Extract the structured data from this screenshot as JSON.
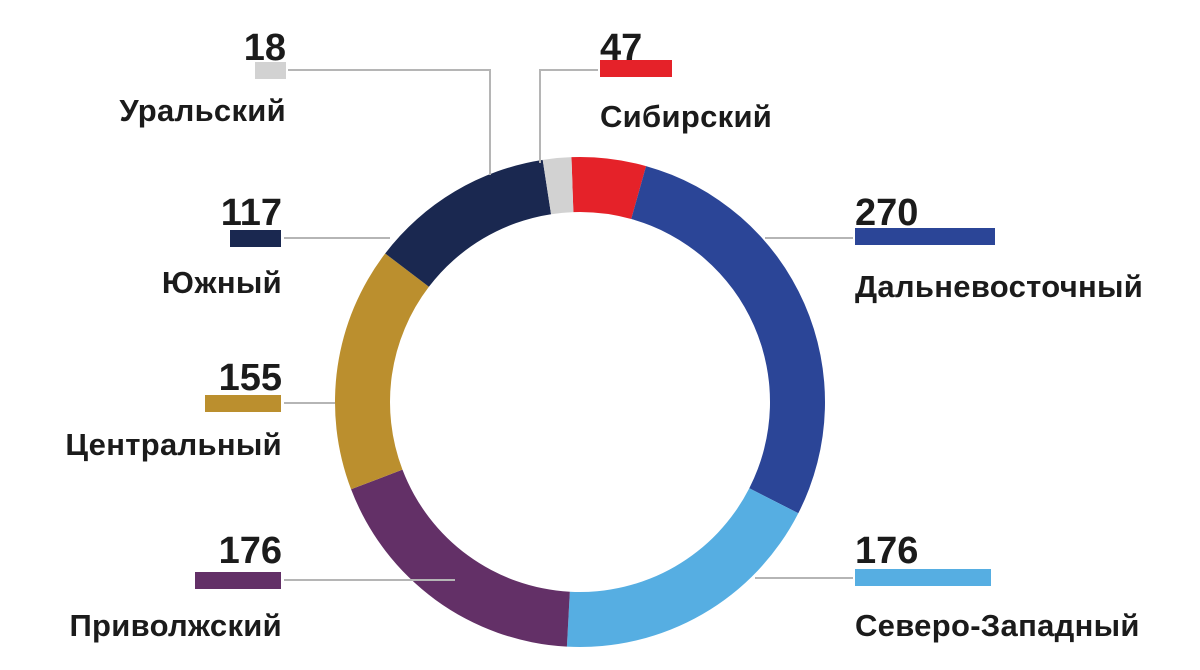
{
  "chart_data": {
    "type": "pie",
    "donut": true,
    "legend": "callouts",
    "slices": [
      {
        "label": "Сибирский",
        "value": 47,
        "color": "#e52229"
      },
      {
        "label": "Дальневосточный",
        "value": 270,
        "color": "#2b4597"
      },
      {
        "label": "Северо-Западный",
        "value": 176,
        "color": "#56aee2"
      },
      {
        "label": "Приволжский",
        "value": 176,
        "color": "#633067"
      },
      {
        "label": "Центральный",
        "value": 155,
        "color": "#bb8f2e"
      },
      {
        "label": "Южный",
        "value": 117,
        "color": "#1a2850"
      },
      {
        "label": "Уральский",
        "value": 18,
        "color": "#d2d2d2"
      }
    ]
  }
}
